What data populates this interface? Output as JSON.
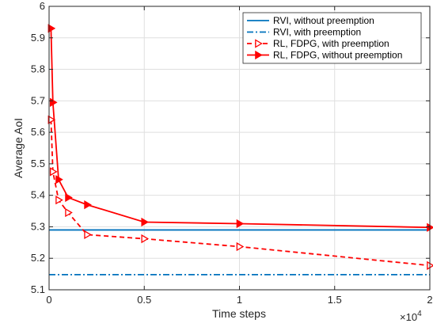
{
  "chart_data": {
    "type": "line",
    "xlabel": "Time steps",
    "ylabel": "Average AoI",
    "x_multiplier_label": "×10",
    "x_multiplier_exp": "4",
    "xlim": [
      0,
      2
    ],
    "ylim": [
      5.1,
      6.0
    ],
    "x_ticks": [
      0,
      0.5,
      1,
      1.5,
      2
    ],
    "x_tick_labels": [
      "0",
      "0.5",
      "1",
      "1.5",
      "2"
    ],
    "y_ticks": [
      5.1,
      5.2,
      5.3,
      5.4,
      5.5,
      5.6,
      5.7,
      5.8,
      5.9,
      6.0
    ],
    "y_tick_labels": [
      "5.1",
      "5.2",
      "5.3",
      "5.4",
      "5.5",
      "5.6",
      "5.7",
      "5.8",
      "5.9",
      "6"
    ],
    "grid": true,
    "legend_position": "top-right",
    "series": [
      {
        "name": "RVI, without preemption",
        "color": "#0072bd",
        "style": "solid",
        "marker": "none",
        "x": [
          0,
          2
        ],
        "y": [
          5.29,
          5.29
        ]
      },
      {
        "name": "RVI, with preemption",
        "color": "#0072bd",
        "style": "dashdot",
        "marker": "none",
        "x": [
          0,
          2
        ],
        "y": [
          5.148,
          5.148
        ]
      },
      {
        "name": "RL, FDPG, with preemption",
        "color": "#ff0000",
        "style": "dashed",
        "marker": "hollow-triangle-right",
        "x": [
          0.01,
          0.02,
          0.05,
          0.1,
          0.2,
          0.5,
          1.0,
          2.0
        ],
        "y": [
          5.64,
          5.475,
          5.385,
          5.345,
          5.275,
          5.262,
          5.237,
          5.177
        ]
      },
      {
        "name": "RL, FDPG, without preemption",
        "color": "#ff0000",
        "style": "solid",
        "marker": "filled-triangle-right",
        "x": [
          0.01,
          0.02,
          0.05,
          0.1,
          0.2,
          0.5,
          1.0,
          2.0
        ],
        "y": [
          5.93,
          5.695,
          5.45,
          5.393,
          5.37,
          5.315,
          5.31,
          5.298
        ]
      }
    ]
  }
}
